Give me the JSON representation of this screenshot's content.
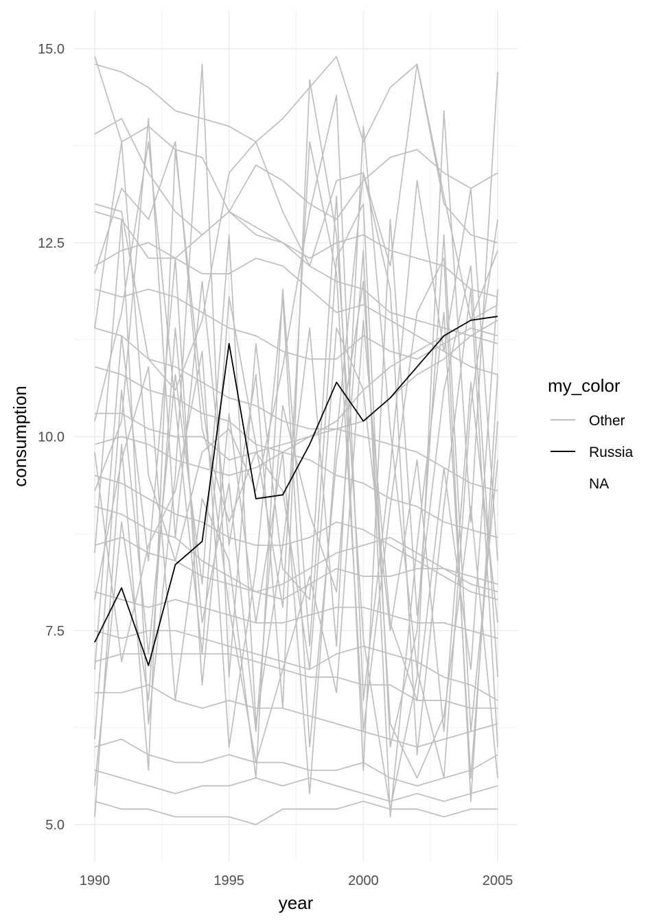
{
  "chart_data": {
    "type": "line",
    "title": "",
    "xlabel": "year",
    "ylabel": "consumption",
    "xlim": [
      1990,
      2005
    ],
    "ylim": [
      5.0,
      15.0
    ],
    "x_ticks": [
      1990,
      1995,
      2000,
      2005
    ],
    "x_tick_labels": [
      "1990",
      "1995",
      "2000",
      "2005"
    ],
    "y_ticks": [
      5.0,
      7.5,
      10.0,
      12.5,
      15.0
    ],
    "y_tick_labels": [
      "5.0",
      "7.5",
      "10.0",
      "12.5",
      "15.0"
    ],
    "grid": true,
    "legend_position": "right",
    "legend": {
      "title": "my_color",
      "entries": [
        {
          "label": "Other",
          "color": "#bebebe"
        },
        {
          "label": "Russia",
          "color": "#000000"
        },
        {
          "label": "NA",
          "color": ""
        }
      ]
    },
    "x": [
      1990,
      1991,
      1992,
      1993,
      1994,
      1995,
      1996,
      1997,
      1998,
      1999,
      2000,
      2001,
      2002,
      2003,
      2004,
      2005
    ],
    "highlight_series": {
      "name": "Russia",
      "color": "#000000",
      "values": [
        7.35,
        8.05,
        7.05,
        8.35,
        8.65,
        11.2,
        9.2,
        9.25,
        9.9,
        10.7,
        10.2,
        10.5,
        10.9,
        11.3,
        11.5,
        11.55
      ]
    },
    "background_series": [
      {
        "values": [
          14.9,
          13.8,
          14.0,
          13.7,
          13.6,
          12.9,
          12.7,
          12.5,
          12.2,
          12.0,
          11.9,
          11.6,
          11.5,
          11.4,
          11.3,
          11.2
        ]
      },
      {
        "values": [
          13.9,
          14.1,
          13.4,
          12.9,
          12.6,
          12.9,
          13.5,
          13.3,
          13.0,
          12.8,
          13.3,
          13.6,
          13.7,
          13.4,
          13.2,
          13.4
        ]
      },
      {
        "values": [
          14.8,
          14.7,
          14.5,
          14.2,
          14.1,
          14.0,
          13.8,
          14.1,
          14.5,
          14.9,
          13.8,
          14.5,
          14.8,
          13.0,
          12.6,
          12.5
        ]
      },
      {
        "values": [
          12.9,
          12.8,
          12.3,
          12.3,
          12.6,
          12.9,
          12.6,
          12.5,
          12.3,
          12.5,
          12.6,
          12.4,
          12.3,
          12.2,
          11.9,
          11.8
        ]
      },
      {
        "values": [
          12.2,
          12.4,
          12.5,
          12.3,
          12.1,
          12.1,
          12.3,
          12.2,
          11.9,
          11.6,
          11.7,
          11.5,
          11.3,
          11.1,
          10.9,
          10.8
        ]
      },
      {
        "values": [
          11.9,
          11.8,
          11.9,
          11.8,
          11.6,
          11.4,
          11.3,
          11.1,
          11.0,
          11.0,
          11.3,
          11.1,
          11.0,
          11.2,
          11.4,
          11.3
        ]
      },
      {
        "values": [
          11.4,
          11.3,
          11.0,
          10.9,
          10.7,
          10.5,
          10.4,
          10.2,
          10.1,
          10.1,
          10.0,
          9.9,
          9.8,
          9.6,
          9.4,
          9.3
        ]
      },
      {
        "values": [
          10.9,
          10.8,
          10.6,
          10.5,
          10.3,
          10.2,
          9.9,
          9.8,
          10.0,
          10.1,
          10.2,
          10.5,
          10.8,
          11.0,
          11.3,
          11.5
        ]
      },
      {
        "values": [
          10.3,
          10.3,
          10.1,
          10.0,
          10.0,
          9.7,
          9.8,
          9.9,
          10.0,
          10.2,
          10.6,
          10.9,
          11.1,
          11.3,
          11.5,
          11.7
        ]
      },
      {
        "values": [
          9.9,
          10.0,
          9.9,
          9.7,
          9.6,
          9.5,
          9.6,
          9.8,
          9.7,
          9.5,
          9.4,
          9.2,
          9.1,
          8.9,
          8.8,
          8.7
        ]
      },
      {
        "values": [
          9.5,
          9.4,
          9.2,
          9.0,
          8.9,
          8.7,
          8.6,
          8.6,
          8.7,
          8.9,
          8.8,
          8.6,
          8.4,
          8.2,
          8.0,
          7.9
        ]
      },
      {
        "values": [
          9.1,
          9.0,
          8.8,
          8.7,
          8.4,
          8.2,
          8.0,
          7.9,
          8.1,
          8.3,
          8.2,
          8.2,
          8.3,
          8.3,
          8.1,
          8.0
        ]
      },
      {
        "values": [
          8.6,
          8.7,
          8.5,
          8.4,
          8.2,
          8.1,
          8.0,
          8.1,
          8.3,
          8.5,
          8.6,
          8.7,
          8.5,
          8.3,
          8.2,
          8.1
        ]
      },
      {
        "values": [
          8.0,
          7.9,
          7.8,
          7.9,
          7.8,
          7.7,
          7.6,
          7.6,
          7.7,
          7.8,
          7.8,
          7.7,
          7.6,
          7.6,
          7.5,
          7.4
        ]
      },
      {
        "values": [
          7.5,
          7.4,
          7.5,
          7.5,
          7.4,
          7.3,
          7.2,
          7.1,
          7.0,
          7.2,
          7.3,
          7.2,
          7.1,
          6.9,
          6.8,
          6.6
        ]
      },
      {
        "values": [
          7.1,
          7.2,
          7.2,
          7.2,
          7.2,
          7.2,
          7.1,
          7.0,
          6.9,
          6.9,
          6.8,
          6.8,
          6.6,
          6.6,
          6.5,
          6.5
        ]
      },
      {
        "values": [
          6.7,
          6.7,
          6.8,
          6.6,
          6.5,
          6.6,
          6.5,
          6.5,
          6.4,
          6.3,
          6.2,
          6.1,
          6.0,
          6.1,
          6.2,
          6.3
        ]
      },
      {
        "values": [
          6.0,
          6.1,
          5.9,
          5.8,
          5.8,
          5.9,
          5.8,
          5.8,
          5.7,
          5.7,
          5.8,
          5.6,
          5.5,
          5.6,
          5.7,
          5.9
        ]
      },
      {
        "values": [
          5.7,
          5.6,
          5.5,
          5.4,
          5.5,
          5.5,
          5.6,
          5.5,
          5.6,
          5.5,
          5.4,
          5.3,
          5.4,
          5.3,
          5.4,
          5.5
        ]
      },
      {
        "values": [
          5.3,
          5.2,
          5.2,
          5.1,
          5.1,
          5.1,
          5.0,
          5.2,
          5.2,
          5.2,
          5.3,
          5.2,
          5.2,
          5.1,
          5.2,
          5.2
        ]
      },
      {
        "values": [
          13.0,
          12.9,
          11.0,
          10.6,
          11.5,
          13.4,
          13.8,
          12.9,
          12.2,
          13.3,
          13.4,
          12.2,
          14.8,
          13.1,
          11.5,
          12.4
        ]
      },
      {
        "values": [
          11.4,
          13.8,
          9.5,
          8.4,
          9.8,
          10.1,
          9.3,
          10.9,
          12.9,
          14.4,
          6.6,
          9.6,
          13.3,
          11.1,
          13.2,
          8.4
        ]
      },
      {
        "values": [
          10.2,
          11.6,
          13.8,
          10.4,
          7.2,
          11.8,
          9.9,
          7.8,
          13.8,
          12.1,
          6.2,
          9.1,
          11.6,
          12.3,
          5.3,
          10.8
        ]
      },
      {
        "values": [
          9.3,
          10.2,
          14.1,
          8.7,
          12.0,
          8.6,
          10.8,
          6.5,
          14.6,
          12.6,
          7.4,
          5.2,
          6.9,
          14.2,
          8.9,
          14.7
        ]
      },
      {
        "values": [
          8.5,
          12.8,
          6.3,
          9.5,
          14.8,
          6.9,
          11.2,
          8.3,
          7.9,
          13.1,
          5.7,
          12.8,
          7.7,
          10.6,
          12.2,
          6.9
        ]
      },
      {
        "values": [
          7.9,
          9.7,
          10.9,
          6.6,
          9.2,
          8.4,
          5.6,
          11.9,
          7.3,
          12.3,
          13.0,
          6.0,
          7.5,
          12.6,
          6.2,
          9.7
        ]
      },
      {
        "values": [
          7.0,
          11.3,
          8.4,
          12.3,
          6.8,
          10.3,
          7.6,
          9.8,
          5.4,
          10.0,
          13.4,
          11.9,
          5.9,
          9.1,
          11.9,
          6.0
        ]
      },
      {
        "values": [
          6.1,
          10.6,
          7.2,
          10.8,
          8.1,
          12.6,
          6.3,
          8.6,
          11.4,
          7.3,
          14.0,
          10.1,
          7.0,
          5.6,
          10.4,
          12.8
        ]
      },
      {
        "values": [
          5.5,
          8.9,
          6.6,
          11.4,
          7.6,
          9.4,
          6.2,
          10.4,
          9.0,
          8.0,
          12.4,
          5.1,
          8.6,
          11.6,
          5.6,
          10.2
        ]
      },
      {
        "values": [
          5.1,
          9.9,
          5.7,
          13.7,
          10.5,
          7.8,
          5.8,
          7.0,
          8.2,
          6.7,
          11.5,
          7.6,
          6.6,
          9.6,
          7.0,
          11.9
        ]
      },
      {
        "values": [
          9.8,
          7.1,
          8.6,
          9.3,
          11.1,
          6.0,
          8.3,
          11.8,
          6.0,
          9.7,
          12.0,
          6.3,
          5.6,
          6.4,
          9.1,
          5.6
        ]
      },
      {
        "values": [
          12.1,
          13.2,
          12.8,
          13.8,
          10.1,
          8.9,
          9.8,
          9.3,
          7.0,
          11.4,
          10.6,
          7.5,
          9.7,
          6.2,
          10.7,
          7.6
        ]
      }
    ]
  }
}
